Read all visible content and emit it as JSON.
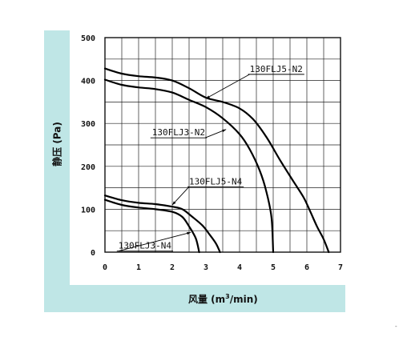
{
  "chart_data": {
    "type": "line",
    "ylabel": "静压 (Pa)",
    "xlabel_main": "风量 (m",
    "xlabel_sup": "3",
    "xlabel_tail": "/min)",
    "xlim": [
      0,
      7
    ],
    "ylim": [
      0,
      500
    ],
    "xticks": [
      "0",
      "1",
      "2",
      "3",
      "4",
      "5",
      "6",
      "7"
    ],
    "yticks": [
      "0",
      "100",
      "200",
      "300",
      "400",
      "500"
    ],
    "grid": true,
    "series": [
      {
        "name": "130FLJ5-N2",
        "points": [
          [
            0,
            428
          ],
          [
            0.5,
            416
          ],
          [
            1,
            410
          ],
          [
            1.5,
            407
          ],
          [
            2,
            400
          ],
          [
            2.5,
            382
          ],
          [
            3,
            360
          ],
          [
            3.5,
            350
          ],
          [
            4,
            335
          ],
          [
            4.4,
            310
          ],
          [
            4.8,
            268
          ],
          [
            5.2,
            215
          ],
          [
            5.6,
            165
          ],
          [
            5.9,
            128
          ],
          [
            6.1,
            95
          ],
          [
            6.3,
            60
          ],
          [
            6.5,
            30
          ],
          [
            6.65,
            0
          ]
        ]
      },
      {
        "name": "130FLJ3-N2",
        "points": [
          [
            0,
            402
          ],
          [
            0.5,
            390
          ],
          [
            1,
            384
          ],
          [
            1.5,
            380
          ],
          [
            2,
            372
          ],
          [
            2.5,
            355
          ],
          [
            3,
            338
          ],
          [
            3.5,
            312
          ],
          [
            4,
            275
          ],
          [
            4.3,
            240
          ],
          [
            4.6,
            190
          ],
          [
            4.8,
            140
          ],
          [
            4.95,
            80
          ],
          [
            5.0,
            0
          ]
        ]
      },
      {
        "name": "130FLJ5-N4",
        "points": [
          [
            0,
            132
          ],
          [
            0.5,
            121
          ],
          [
            1,
            115
          ],
          [
            1.5,
            112
          ],
          [
            2,
            106
          ],
          [
            2.3,
            100
          ],
          [
            2.6,
            82
          ],
          [
            2.9,
            62
          ],
          [
            3.1,
            42
          ],
          [
            3.3,
            20
          ],
          [
            3.42,
            0
          ]
        ]
      },
      {
        "name": "130FLJ3-N4",
        "points": [
          [
            0,
            122
          ],
          [
            0.5,
            110
          ],
          [
            1,
            104
          ],
          [
            1.5,
            100
          ],
          [
            2,
            94
          ],
          [
            2.3,
            82
          ],
          [
            2.5,
            60
          ],
          [
            2.7,
            32
          ],
          [
            2.8,
            0
          ]
        ]
      }
    ],
    "labels": [
      {
        "text": "130FLJ5-N2",
        "at": [
          4.3,
          420
        ],
        "leader_from": [
          4.3,
          400
        ],
        "leader_to": [
          3.0,
          358
        ]
      },
      {
        "text": "130FLJ3-N2",
        "at": [
          1.4,
          272
        ],
        "leader_from": [
          3.2,
          272
        ],
        "leader_to": [
          3.6,
          286
        ]
      },
      {
        "text": "130FLJ5-N4",
        "at": [
          2.5,
          158
        ],
        "leader_from": [
          2.5,
          165
        ],
        "leader_to": [
          2.0,
          110
        ]
      },
      {
        "text": "130FLJ3-N4",
        "at": [
          0.4,
          8
        ],
        "leader_from": [
          0.3,
          -4
        ],
        "leader_to": [
          2.55,
          46
        ]
      }
    ]
  }
}
